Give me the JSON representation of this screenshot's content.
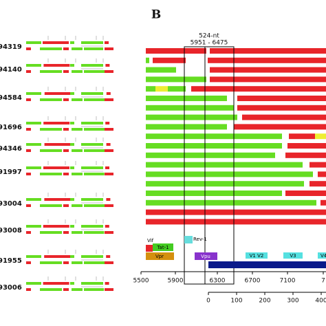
{
  "panel_label": "B",
  "window": {
    "length": "524-nt",
    "range": "5951 - 6475"
  },
  "samples": [
    "94319",
    "94140",
    "94584",
    "91696",
    "94346",
    "91997",
    "93004",
    "93008",
    "91955",
    "93006"
  ],
  "genes": {
    "vif": "Vif",
    "rev": "Rev-1",
    "tat": "Tat-1",
    "vpr": "Vpr",
    "vpu": "Vpu",
    "v1v2": "V1  V2",
    "v3": "V3",
    "v4": "V4"
  },
  "axis": {
    "ticks": [
      "5500",
      "5900",
      "6300",
      "6700",
      "7100",
      "7"
    ]
  },
  "axis2": {
    "ticks": [
      "0",
      "100",
      "200",
      "300",
      "400"
    ]
  }
}
